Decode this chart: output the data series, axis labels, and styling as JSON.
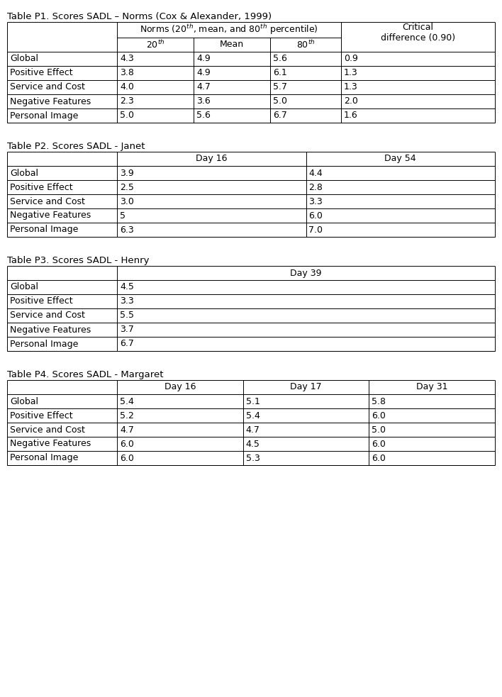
{
  "title1": "Table P1. Scores SADL – Norms (Cox & Alexander, 1999)",
  "title2": "Table P2. Scores SADL - Janet",
  "title3": "Table P3. Scores SADL - Henry",
  "title4": "Table P4. Scores SADL - Margaret",
  "table1_rows": [
    [
      "Global",
      "4.3",
      "4.9",
      "5.6",
      "0.9"
    ],
    [
      "Positive Effect",
      "3.8",
      "4.9",
      "6.1",
      "1.3"
    ],
    [
      "Service and Cost",
      "4.0",
      "4.7",
      "5.7",
      "1.3"
    ],
    [
      "Negative Features",
      "2.3",
      "3.6",
      "5.0",
      "2.0"
    ],
    [
      "Personal Image",
      "5.0",
      "5.6",
      "6.7",
      "1.6"
    ]
  ],
  "table2_rows": [
    [
      "Global",
      "3.9",
      "4.4"
    ],
    [
      "Positive Effect",
      "2.5",
      "2.8"
    ],
    [
      "Service and Cost",
      "3.0",
      "3.3"
    ],
    [
      "Negative Features",
      "5",
      "6.0"
    ],
    [
      "Personal Image",
      "6.3",
      "7.0"
    ]
  ],
  "table3_rows": [
    [
      "Global",
      "4.5"
    ],
    [
      "Positive Effect",
      "3.3"
    ],
    [
      "Service and Cost",
      "5.5"
    ],
    [
      "Negative Features",
      "3.7"
    ],
    [
      "Personal Image",
      "6.7"
    ]
  ],
  "table4_rows": [
    [
      "Global",
      "5.4",
      "5.1",
      "5.8"
    ],
    [
      "Positive Effect",
      "5.2",
      "5.4",
      "6.0"
    ],
    [
      "Service and Cost",
      "4.7",
      "4.7",
      "5.0"
    ],
    [
      "Negative Features",
      "6.0",
      "4.5",
      "6.0"
    ],
    [
      "Personal Image",
      "6.0",
      "5.3",
      "6.0"
    ]
  ],
  "bg_color": "#ffffff",
  "line_color": "#000000",
  "text_color": "#000000",
  "font_size": 9.0,
  "title_font_size": 9.5
}
